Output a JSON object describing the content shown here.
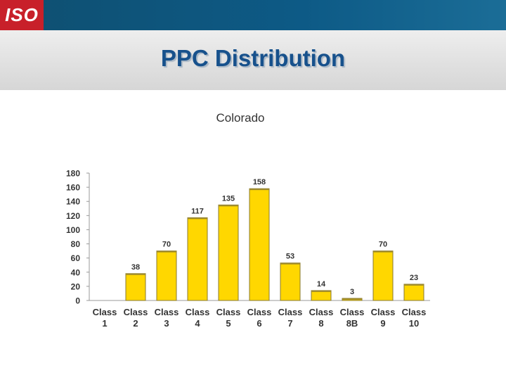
{
  "header": {
    "logo_text": "ISO",
    "colors": {
      "bar": "#0d5a86",
      "logo": "#c8202a"
    }
  },
  "slide": {
    "title": "PPC Distribution"
  },
  "chart_data": {
    "type": "bar",
    "title": "Colorado",
    "categories": [
      {
        "line1": "Class",
        "line2": "1"
      },
      {
        "line1": "Class",
        "line2": "2"
      },
      {
        "line1": "Class",
        "line2": "3"
      },
      {
        "line1": "Class",
        "line2": "4"
      },
      {
        "line1": "Class",
        "line2": "5"
      },
      {
        "line1": "Class",
        "line2": "6"
      },
      {
        "line1": "Class",
        "line2": "7"
      },
      {
        "line1": "Class",
        "line2": "8"
      },
      {
        "line1": "Class",
        "line2": "8B"
      },
      {
        "line1": "Class",
        "line2": "9"
      },
      {
        "line1": "Class",
        "line2": "10"
      }
    ],
    "values": [
      0,
      38,
      70,
      117,
      135,
      158,
      53,
      14,
      3,
      70,
      23
    ],
    "data_labels": [
      "",
      "38",
      "70",
      "117",
      "135",
      "158",
      "53",
      "14",
      "3",
      "70",
      "23"
    ],
    "ylim": [
      0,
      180
    ],
    "yticks": [
      0,
      20,
      40,
      60,
      80,
      100,
      120,
      140,
      160,
      180
    ],
    "grid": false,
    "bar_color": "#ffd700"
  }
}
